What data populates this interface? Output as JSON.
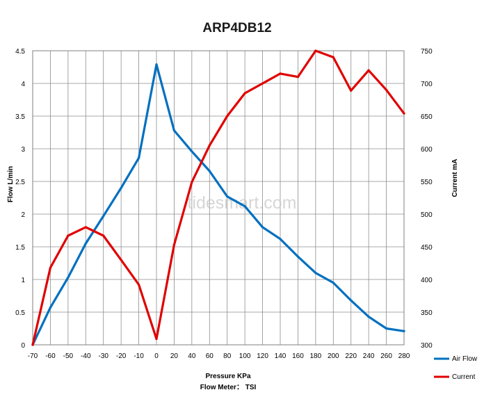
{
  "chart_data": {
    "type": "line",
    "title": "ARP4DB12",
    "xlabel": "Pressure KPa",
    "xlabel2": "Flow Meter： TSI",
    "ylabel": "Flow  L/min",
    "y2label": "Current  mA",
    "watermark": "tidesmart.com",
    "x": [
      -70,
      -60,
      -50,
      -40,
      -30,
      -20,
      -10,
      0,
      20,
      40,
      60,
      80,
      100,
      120,
      140,
      160,
      180,
      200,
      220,
      240,
      260,
      280
    ],
    "x_tick_labels": [
      "-70",
      "-60",
      "-50",
      "-40",
      "-30",
      "-20",
      "-10",
      "0",
      "20",
      "40",
      "60",
      "80",
      "100",
      "120",
      "140",
      "160",
      "180",
      "200",
      "220",
      "240",
      "260",
      "280"
    ],
    "ylim": [
      0,
      4.5
    ],
    "y_tick_labels": [
      "0",
      "0.5",
      "1",
      "1.5",
      "2",
      "2.5",
      "3",
      "3.5",
      "4",
      "4.5"
    ],
    "y2lim": [
      300,
      750
    ],
    "y2_tick_labels": [
      "300",
      "350",
      "400",
      "450",
      "500",
      "550",
      "600",
      "650",
      "700",
      "750"
    ],
    "grid": true,
    "legend_position": "bottom-right",
    "series": [
      {
        "name": "Air Flow",
        "axis": "left",
        "color": "#0070c0",
        "values": [
          0.0,
          0.57,
          1.03,
          1.55,
          1.97,
          2.4,
          2.86,
          4.29,
          3.28,
          2.96,
          2.66,
          2.27,
          2.12,
          1.8,
          1.62,
          1.35,
          1.1,
          0.95,
          0.68,
          0.43,
          0.25,
          0.21
        ]
      },
      {
        "name": "Current",
        "axis": "right",
        "color": "#e00000",
        "values": [
          300,
          418,
          467,
          480,
          467,
          430,
          392,
          309,
          453,
          549,
          605,
          650,
          685,
          700,
          715,
          710,
          750,
          740,
          689,
          720,
          690,
          654
        ]
      }
    ]
  }
}
